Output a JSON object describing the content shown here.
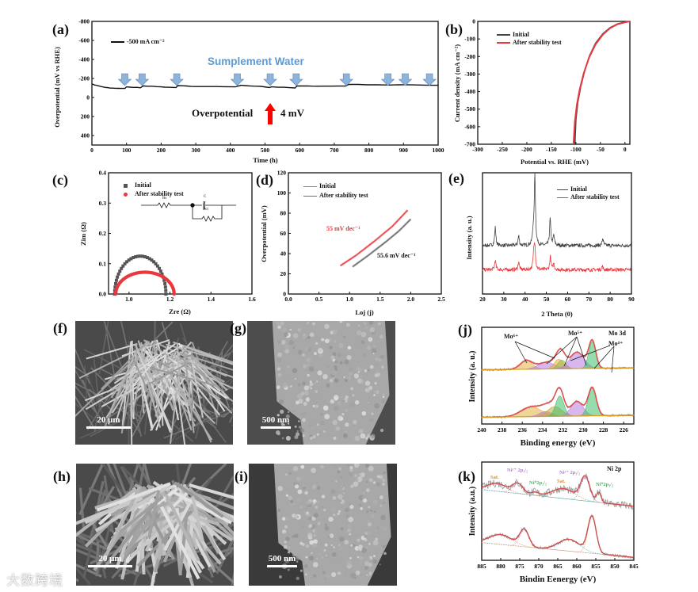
{
  "panels": {
    "a": "(a)",
    "b": "(b)",
    "c": "(c)",
    "d": "(d)",
    "e": "(e)",
    "f": "(f)",
    "g": "(g)",
    "h": "(h)",
    "i": "(i)",
    "j": "(j)",
    "k": "(k)"
  },
  "watermark": "大数跨境",
  "images": [
    {
      "panel": "f",
      "kind": "SEM nanowire array",
      "scale_bar": "20 μm"
    },
    {
      "panel": "g",
      "kind": "SEM single rod",
      "scale_bar": "500 nm"
    },
    {
      "panel": "h",
      "kind": "SEM nanowire array",
      "scale_bar": "20 μm"
    },
    {
      "panel": "i",
      "kind": "SEM single rod",
      "scale_bar": "500 nm"
    }
  ],
  "chart_data": [
    {
      "id": "a",
      "type": "line",
      "title": "",
      "xlabel": "Time (h)",
      "ylabel": "Overpotential (mV vs RHE)",
      "xlim": [
        0,
        1000
      ],
      "ylim": [
        500,
        -800
      ],
      "xticks": [
        "0",
        "100",
        "200",
        "300",
        "400",
        "500",
        "600",
        "700",
        "800",
        "900",
        "1000"
      ],
      "yticks": [
        "-800",
        "-600",
        "-400",
        "-200",
        "0",
        "200",
        "400"
      ],
      "legend_position": "top-left",
      "series": [
        {
          "name": "-500 mA cm⁻²",
          "color": "#111111",
          "points": [
            [
              0,
              -140
            ],
            [
              15,
              -125
            ],
            [
              40,
              -105
            ],
            [
              60,
              -98
            ],
            [
              95,
              -95
            ],
            [
              100,
              -112
            ],
            [
              140,
              -102
            ],
            [
              148,
              -122
            ],
            [
              200,
              -112
            ],
            [
              243,
              -105
            ],
            [
              248,
              -125
            ],
            [
              300,
              -115
            ],
            [
              415,
              -112
            ],
            [
              430,
              -128
            ],
            [
              480,
              -118
            ],
            [
              513,
              -105
            ],
            [
              520,
              -112
            ],
            [
              587,
              -100
            ],
            [
              592,
              -122
            ],
            [
              650,
              -118
            ],
            [
              733,
              -120
            ],
            [
              742,
              -138
            ],
            [
              850,
              -132
            ],
            [
              900,
              -134
            ],
            [
              1000,
              -128
            ]
          ]
        }
      ],
      "annotations": {
        "title": "Sumplement Water",
        "water_added_at": [
          95,
          145,
          245,
          420,
          515,
          590,
          735,
          855,
          905,
          975
        ],
        "arrow_color": "#8fb4dc",
        "overpotential_label": "Overpotential",
        "change": "4 mV",
        "change_arrow_color": "#ff0000"
      }
    },
    {
      "id": "b",
      "type": "line",
      "xlabel": "Potential vs. RHE (mV)",
      "ylabel": "Current density (mA cm⁻²)",
      "xlim": [
        -300,
        10
      ],
      "ylim": [
        -700,
        0
      ],
      "xticks": [
        "-300",
        "-250",
        "-200",
        "-150",
        "-100",
        "-50",
        "0"
      ],
      "yticks": [
        "0",
        "-100",
        "-200",
        "-300",
        "-400",
        "-500",
        "-600",
        "-700"
      ],
      "legend_position": "top-left",
      "series": [
        {
          "name": "Initial",
          "color": "#444444",
          "points": [
            [
              10,
              0
            ],
            [
              0,
              -4
            ],
            [
              -15,
              -14
            ],
            [
              -30,
              -35
            ],
            [
              -45,
              -70
            ],
            [
              -60,
              -125
            ],
            [
              -72,
              -195
            ],
            [
              -82,
              -280
            ],
            [
              -90,
              -370
            ],
            [
              -96,
              -460
            ],
            [
              -100,
              -560
            ],
            [
              -102,
              -700
            ]
          ]
        },
        {
          "name": "After stability test",
          "color": "#e8383d",
          "points": [
            [
              10,
              0
            ],
            [
              0,
              -5
            ],
            [
              -15,
              -16
            ],
            [
              -30,
              -38
            ],
            [
              -45,
              -75
            ],
            [
              -60,
              -132
            ],
            [
              -73,
              -205
            ],
            [
              -84,
              -295
            ],
            [
              -92,
              -385
            ],
            [
              -98,
              -475
            ],
            [
              -102,
              -570
            ],
            [
              -105,
              -700
            ]
          ]
        }
      ]
    },
    {
      "id": "c",
      "type": "scatter",
      "xlabel": "Zre (Ω)",
      "ylabel": "Zim (Ω)",
      "xlim": [
        0.9,
        1.6
      ],
      "ylim": [
        0,
        0.4
      ],
      "xticks": [
        "1.0",
        "1.2",
        "1.4",
        "1.6"
      ],
      "yticks": [
        "0.0",
        "0.1",
        "0.2",
        "0.3",
        "0.4"
      ],
      "legend_position": "top-left",
      "series": [
        {
          "name": "Initial",
          "color": "#555555",
          "marker": "square",
          "Rs": 0.93,
          "Rct": 0.25,
          "zim_max": 0.125
        },
        {
          "name": "After stability test",
          "color": "#e8383d",
          "marker": "circle",
          "Rs": 0.935,
          "Rct": 0.285,
          "zim_max": 0.072
        }
      ],
      "circuit": {
        "labels": [
          "Rs",
          "C",
          "Rct"
        ]
      }
    },
    {
      "id": "d",
      "type": "line",
      "xlabel": "Loj (j)",
      "ylabel": "Overpotential (mV)",
      "xlim": [
        0,
        2.5
      ],
      "ylim": [
        0,
        120
      ],
      "xticks": [
        "0.0",
        "0.5",
        "1.0",
        "1.5",
        "2.0",
        "2.5"
      ],
      "yticks": [
        "0",
        "20",
        "40",
        "60",
        "80",
        "100",
        "120"
      ],
      "legend_position": "top-left",
      "series": [
        {
          "name": "Initial",
          "color": "#666666",
          "slope_label": "55.6 mV dec⁻¹",
          "points": [
            [
              1.05,
              27
            ],
            [
              1.3,
              38
            ],
            [
              1.6,
              52
            ],
            [
              1.8,
              62
            ],
            [
              2.0,
              74
            ]
          ]
        },
        {
          "name": "After stability test",
          "color": "#e8383d",
          "slope_label": "55 mV dec⁻¹",
          "points": [
            [
              0.85,
              28
            ],
            [
              1.1,
              38
            ],
            [
              1.4,
              52
            ],
            [
              1.7,
              67
            ],
            [
              1.95,
              83
            ]
          ]
        }
      ]
    },
    {
      "id": "e",
      "type": "line",
      "xlabel": "2 Theta (0)",
      "ylabel": "Intensity (a. u.)",
      "xlim": [
        20,
        90
      ],
      "ylim": [
        0,
        100
      ],
      "xticks": [
        "20",
        "30",
        "40",
        "50",
        "60",
        "70",
        "80",
        "90"
      ],
      "yticks": [],
      "legend_position": "top-right",
      "series": [
        {
          "name": "Initial",
          "color": "#444444",
          "baseline": 40,
          "peaks": [
            [
              26,
              15
            ],
            [
              37,
              8
            ],
            [
              43.8,
              10
            ],
            [
              44.6,
              58
            ],
            [
              51.8,
              22
            ],
            [
              53.5,
              8
            ],
            [
              76.5,
              6
            ]
          ]
        },
        {
          "name": "After stability test",
          "color": "#e8383d",
          "baseline": 20,
          "peaks": [
            [
              26,
              8
            ],
            [
              37,
              7
            ],
            [
              44.1,
              14
            ],
            [
              44.6,
              18
            ],
            [
              51.9,
              11
            ],
            [
              53.5,
              5
            ],
            [
              76.3,
              3
            ]
          ]
        }
      ]
    },
    {
      "id": "j",
      "type": "area",
      "xlabel": "Binding energy (eV)",
      "ylabel": "Intensity (a. u.)",
      "xlim": [
        240,
        225
      ],
      "ylim": [
        0,
        100
      ],
      "xticks": [
        "240",
        "238",
        "236",
        "234",
        "232",
        "230",
        "228",
        "226"
      ],
      "yticks": [],
      "labels": {
        "region": "Mo 3d",
        "mo6": "Mo⁶⁺",
        "mo5": "Mo⁵⁺",
        "mo4": "Mo⁴⁺"
      },
      "spectra": [
        {
          "name": "top",
          "baseline": [
            56,
            58
          ],
          "components": [
            [
              235.6,
              9,
              0.6,
              "#e3b341"
            ],
            [
              233.6,
              7,
              0.8,
              "#b77be0"
            ],
            [
              232.4,
              10,
              0.45,
              "#e3b341"
            ],
            [
              232.1,
              9,
              0.4,
              "#9bb34a"
            ],
            [
              230.6,
              17,
              0.7,
              "#b77be0"
            ],
            [
              229.1,
              28,
              0.35,
              "#3fbf6a"
            ]
          ]
        },
        {
          "name": "bottom",
          "baseline": [
            7,
            9
          ],
          "components": [
            [
              235.1,
              10,
              1.0,
              "#e3b341"
            ],
            [
              233.7,
              5,
              0.6,
              "#b77be0"
            ],
            [
              232.8,
              10,
              0.7,
              "#c2a93a"
            ],
            [
              232.3,
              21,
              0.4,
              "#3fbf6a"
            ],
            [
              230.6,
              15,
              0.6,
              "#b77be0"
            ],
            [
              229.1,
              29,
              0.4,
              "#3fbf6a"
            ]
          ]
        }
      ],
      "envelope_color": "#e05050"
    },
    {
      "id": "k",
      "type": "line",
      "xlabel": "Bindin Eenergy (eV)",
      "ylabel": "Intensity (a.u.)",
      "xlim": [
        885,
        845
      ],
      "ylim": [
        0,
        100
      ],
      "xticks": [
        "885",
        "880",
        "875",
        "870",
        "865",
        "860",
        "855",
        "850",
        "845"
      ],
      "yticks": [],
      "labels": {
        "region": "Ni 2p",
        "sat1": "Sat.",
        "ni2_12": "Ni²⁺ 2p₁/₂",
        "ni0_12": "Ni⁰2p₁/₂",
        "ni2_32": "Ni²⁺ 2p₃/₂",
        "sat2": "Sat.",
        "ni0_32": "Ni⁰2p₃/₂"
      },
      "spectra": [
        {
          "name": "top",
          "baseline": [
            72,
            55
          ],
          "noise": 4,
          "components": [
            [
              881,
              8,
              2.5
            ],
            [
              875.5,
              10,
              1.4
            ],
            [
              871,
              3,
              1
            ],
            [
              863.5,
              10,
              3
            ],
            [
              857.8,
              24,
              1.2
            ],
            [
              854.2,
              10,
              0.6
            ]
          ]
        },
        {
          "name": "bottom",
          "baseline": [
            18,
            3
          ],
          "noise": 1.5,
          "components": [
            [
              880,
              10,
              3
            ],
            [
              873.8,
              17,
              1.2
            ],
            [
              862,
              12,
              2.8
            ],
            [
              856,
              37,
              1.1
            ]
          ]
        }
      ],
      "fit_color": "#d05050",
      "raw_color": "#9a9a9a"
    }
  ]
}
